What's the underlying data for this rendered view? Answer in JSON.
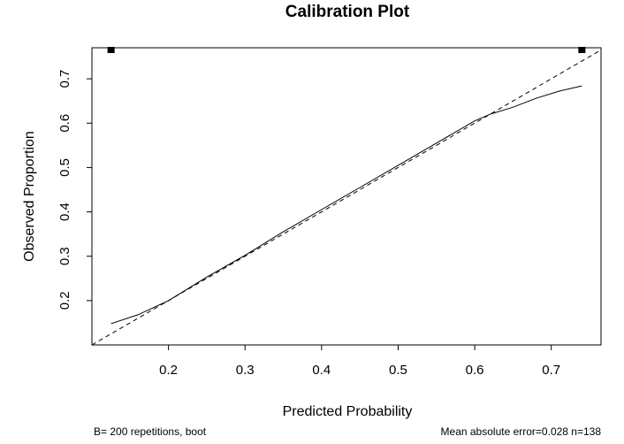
{
  "chart_data": {
    "type": "line",
    "title": "Calibration Plot",
    "xlabel": "Predicted Probability",
    "ylabel": "Observed Proportion",
    "xlim": [
      0.1,
      0.765
    ],
    "ylim": [
      0.1,
      0.77
    ],
    "x_ticks": [
      0.2,
      0.3,
      0.4,
      0.5,
      0.6,
      0.7
    ],
    "y_ticks": [
      0.2,
      0.3,
      0.4,
      0.5,
      0.6,
      0.7
    ],
    "grid": false,
    "legend": "none",
    "series": [
      {
        "style": "solid",
        "x": [
          0.125,
          0.16,
          0.2,
          0.25,
          0.3,
          0.35,
          0.4,
          0.45,
          0.5,
          0.55,
          0.6,
          0.62,
          0.65,
          0.68,
          0.71,
          0.74
        ],
        "y": [
          0.148,
          0.168,
          0.2,
          0.253,
          0.302,
          0.355,
          0.405,
          0.455,
          0.505,
          0.555,
          0.605,
          0.62,
          0.636,
          0.656,
          0.672,
          0.684
        ]
      },
      {
        "style": "dashed",
        "x": [
          0.1,
          0.765
        ],
        "y": [
          0.1,
          0.765
        ]
      }
    ],
    "rug_x": [
      0.125,
      0.74
    ],
    "footnote_left": "B= 200 repetitions, boot",
    "footnote_right": "Mean absolute error=0.028 n=138"
  }
}
